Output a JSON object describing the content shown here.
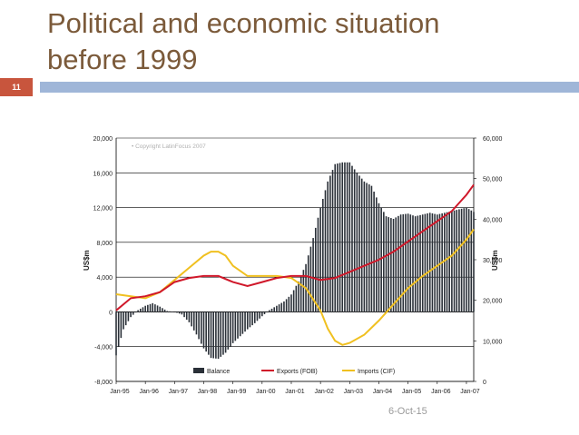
{
  "slide": {
    "title_line1": "Political and economic situation",
    "title_line2": "before 1999",
    "slide_number": "11",
    "footer_date": "6-Oct-15"
  },
  "chart_data": {
    "type": "bar",
    "copyright": "Copyright LatinFocus 2007",
    "ylabel_left": "US$m",
    "ylabel_right": "US$m",
    "ylim_left": [
      -8000,
      20000
    ],
    "ylim_right": [
      0,
      60000
    ],
    "yticks_left": [
      "20,000",
      "16,000",
      "12,000",
      "8,000",
      "4,000",
      "0",
      "-4,000",
      "-8,000"
    ],
    "yticks_right": [
      "60,000",
      "50,000",
      "40,000",
      "30,000",
      "20,000",
      "10,000",
      "0"
    ],
    "x_tick_labels": [
      "Jan-95",
      "Jan-96",
      "Jan-97",
      "Jan-98",
      "Jan-99",
      "Jan-00",
      "Jan-01",
      "Jan-02",
      "Jan-03",
      "Jan-04",
      "Jan-05",
      "Jan-06",
      "Jan-07"
    ],
    "x_range_years": [
      1995.0,
      2007.25
    ],
    "grid": true,
    "legend_position": "bottom",
    "legend": [
      "Balance",
      "Exports (FOB)",
      "Imports (CIF)"
    ],
    "colors": {
      "balance": "#2a3038",
      "exports": "#d0182a",
      "imports": "#f0c020"
    },
    "balance_monthly_ending": {
      "axis": "left",
      "x": [
        1995.0,
        1995.25,
        1995.5,
        1995.75,
        1996.0,
        1996.25,
        1996.5,
        1996.75,
        1997.0,
        1997.25,
        1997.5,
        1997.75,
        1998.0,
        1998.25,
        1998.5,
        1998.75,
        1999.0,
        1999.25,
        1999.5,
        1999.75,
        2000.0,
        2000.25,
        2000.5,
        2000.75,
        2001.0,
        2001.25,
        2001.5,
        2001.75,
        2002.0,
        2002.25,
        2002.5,
        2002.75,
        2003.0,
        2003.25,
        2003.5,
        2003.75,
        2004.0,
        2004.25,
        2004.5,
        2004.75,
        2005.0,
        2005.25,
        2005.5,
        2005.75,
        2006.0,
        2006.25,
        2006.5,
        2006.75,
        2007.0,
        2007.25
      ],
      "y": [
        -5000,
        -2000,
        -600,
        200,
        700,
        1000,
        600,
        100,
        0,
        -300,
        -1200,
        -2600,
        -4200,
        -5300,
        -5400,
        -4700,
        -3600,
        -2800,
        -2000,
        -1300,
        -500,
        200,
        700,
        1200,
        2000,
        3500,
        5500,
        8500,
        12000,
        15000,
        17000,
        17200,
        17200,
        16000,
        15000,
        14500,
        12500,
        11000,
        10700,
        11200,
        11300,
        11000,
        11200,
        11400,
        11200,
        11400,
        11600,
        11800,
        12000,
        11500
      ]
    },
    "exports": {
      "axis": "right",
      "x": [
        1995.0,
        1995.5,
        1996.0,
        1996.5,
        1997.0,
        1997.5,
        1998.0,
        1998.5,
        1999.0,
        1999.5,
        2000.0,
        2000.5,
        2001.0,
        2001.5,
        2002.0,
        2002.5,
        2003.0,
        2003.5,
        2004.0,
        2004.5,
        2005.0,
        2005.5,
        2006.0,
        2006.5,
        2007.0,
        2007.25
      ],
      "y": [
        17500,
        20500,
        21000,
        22000,
        24500,
        25500,
        26000,
        26000,
        24500,
        23500,
        24500,
        25500,
        26000,
        26000,
        25000,
        25500,
        27000,
        28500,
        30000,
        32000,
        34500,
        37000,
        39500,
        42000,
        46000,
        48500
      ]
    },
    "imports": {
      "axis": "right",
      "x": [
        1995.0,
        1995.5,
        1996.0,
        1996.5,
        1997.0,
        1997.5,
        1998.0,
        1998.25,
        1998.5,
        1998.75,
        1999.0,
        1999.5,
        2000.0,
        2000.5,
        2001.0,
        2001.5,
        2002.0,
        2002.25,
        2002.5,
        2002.75,
        2003.0,
        2003.5,
        2004.0,
        2004.5,
        2005.0,
        2005.5,
        2006.0,
        2006.5,
        2007.0,
        2007.25
      ],
      "y": [
        21500,
        21000,
        20500,
        22000,
        25000,
        28000,
        31000,
        32000,
        32000,
        31000,
        28500,
        26000,
        26000,
        26000,
        25500,
        23000,
        17500,
        13000,
        10000,
        9000,
        9500,
        11500,
        15000,
        19000,
        23000,
        26000,
        28500,
        31000,
        35000,
        37500
      ]
    }
  }
}
